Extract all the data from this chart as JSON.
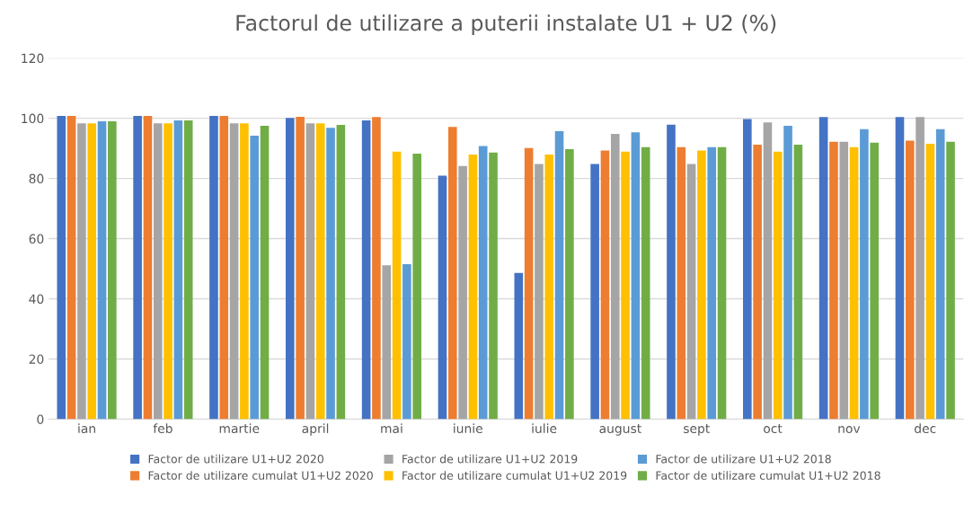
{
  "chart_data": {
    "type": "bar",
    "title": "Factorul de utilizare a puterii instalate U1 + U2 (%)",
    "categories": [
      "ian",
      "feb",
      "martie",
      "april",
      "mai",
      "iunie",
      "iulie",
      "august",
      "sept",
      "oct",
      "nov",
      "dec"
    ],
    "series": [
      {
        "name": "Factor de utilizare U1+U2 2020",
        "color": "#4472c4",
        "values": [
          100.8,
          100.8,
          100.8,
          100.1,
          99.3,
          80.9,
          48.6,
          84.8,
          97.9,
          99.7,
          100.4,
          100.4
        ]
      },
      {
        "name": "Factor de utilizare cumulat U1+U2 2020",
        "color": "#ed7d31",
        "values": [
          100.8,
          100.8,
          100.8,
          100.5,
          100.4,
          97.1,
          90.1,
          89.3,
          90.4,
          91.2,
          92.2,
          92.6
        ]
      },
      {
        "name": "Factor de utilizare U1+U2 2019",
        "color": "#a5a5a5",
        "values": [
          98.3,
          98.3,
          98.3,
          98.3,
          51.1,
          84.1,
          84.8,
          94.8,
          84.8,
          98.6,
          92.2,
          100.4
        ]
      },
      {
        "name": "Factor de utilizare cumulat U1+U2 2019",
        "color": "#ffc000",
        "values": [
          98.3,
          98.3,
          98.3,
          98.3,
          88.9,
          87.9,
          87.9,
          88.9,
          89.3,
          88.9,
          90.4,
          91.5
        ]
      },
      {
        "name": "Factor de utilizare U1+U2 2018",
        "color": "#5b9bd5",
        "values": [
          99.0,
          99.3,
          94.2,
          96.8,
          51.5,
          90.8,
          95.7,
          95.3,
          90.4,
          97.5,
          96.4,
          96.4
        ]
      },
      {
        "name": "Factor de utilizare cumulat U1+U2 2018",
        "color": "#70ad47",
        "values": [
          99.0,
          99.3,
          97.5,
          97.8,
          88.2,
          88.6,
          89.7,
          90.4,
          90.4,
          91.2,
          91.9,
          92.2
        ]
      }
    ],
    "ylim": [
      0,
      120
    ],
    "yticks": [
      0,
      20,
      40,
      60,
      80,
      100,
      120
    ],
    "grid": "y",
    "legend": "bottom"
  }
}
